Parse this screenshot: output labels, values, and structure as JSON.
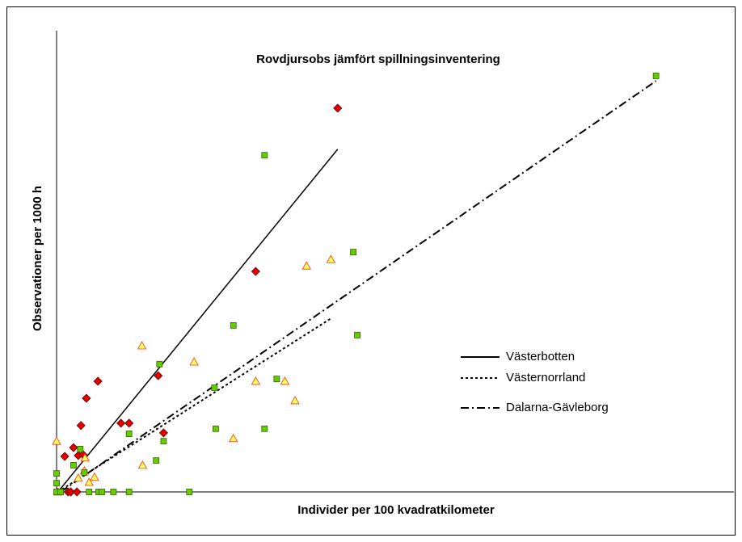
{
  "chart_data": {
    "type": "scatter",
    "title": "Rovdjursobs jämfört spillningsinventering",
    "x_label": "Individer per 100 kvadratkilometer",
    "y_label": "Observationer per 1000 h",
    "xlim": [
      0,
      100
    ],
    "ylim": [
      0,
      100
    ],
    "legend": "right",
    "series": [
      {
        "name": "Västerbotten",
        "color": "#e00000",
        "stroke": "#600000",
        "marker": "diamond",
        "x": [
          41.5,
          29.4,
          6.1,
          4.4,
          3.6,
          9.5,
          10.7,
          15.0,
          15.8,
          2.5,
          1.2,
          3.2,
          3.9,
          1.7,
          2.1,
          3.0
        ],
        "y": [
          83.2,
          47.8,
          24.0,
          20.3,
          14.4,
          14.9,
          14.9,
          25.2,
          12.8,
          9.6,
          7.7,
          7.9,
          8.1,
          0,
          0,
          0
        ],
        "trendline": {
          "x": [
            0.2,
            41.5
          ],
          "y": [
            0,
            74.3
          ],
          "dash": "solid"
        }
      },
      {
        "name": "Västernorrland",
        "color": "#ffff66",
        "stroke": "#ff3300",
        "marker": "triangle",
        "x": [
          0,
          12.6,
          36.9,
          40.5,
          29.4,
          33.7,
          35.2,
          20.3,
          26.1,
          12.7,
          4.2,
          4.1,
          5.6,
          4.8,
          3.2,
          0.2
        ],
        "y": [
          11.0,
          31.7,
          49.0,
          50.4,
          24.0,
          24.0,
          19.8,
          28.2,
          11.6,
          5.8,
          7.4,
          4.6,
          3.2,
          2.1,
          3.0,
          0
        ],
        "trendline": {
          "x": [
            0.2,
            40.6
          ],
          "y": [
            0,
            37.7
          ],
          "dash": "dotted"
        }
      },
      {
        "name": "Dalarna-Gävleborg",
        "color": "#66cc00",
        "stroke": "#336600",
        "marker": "square",
        "x": [
          88.5,
          30.7,
          43.8,
          44.4,
          26.1,
          15.2,
          32.5,
          23.3,
          10.7,
          15.8,
          23.5,
          30.7,
          14.7,
          3.5,
          2.5,
          4.1,
          0,
          0,
          0,
          0.6,
          4.8,
          6.2,
          6.7,
          8.4,
          10.7,
          19.6
        ],
        "y": [
          90.2,
          73.0,
          52.0,
          34.0,
          36.1,
          27.7,
          24.5,
          22.6,
          12.6,
          11.0,
          13.7,
          13.7,
          6.8,
          9.3,
          5.8,
          4.2,
          4.0,
          1.9,
          0,
          0,
          0,
          0,
          0,
          0,
          0,
          0
        ],
        "trendline": {
          "x": [
            0.6,
            88.5
          ],
          "y": [
            0,
            89.1
          ],
          "dash": "dashdot"
        }
      }
    ]
  }
}
